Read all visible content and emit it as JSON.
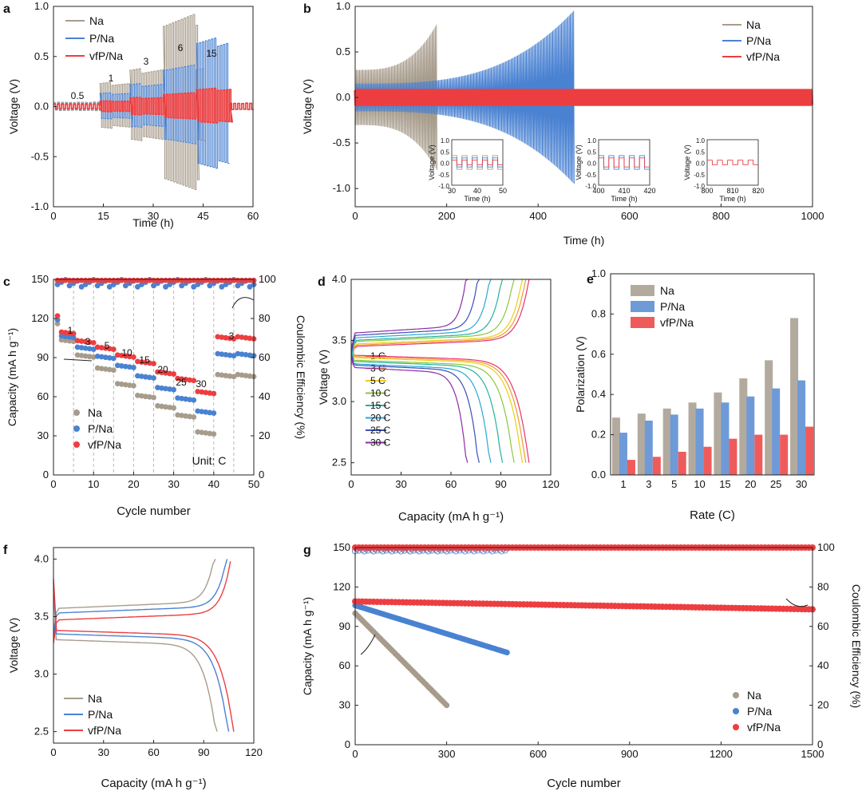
{
  "colors": {
    "na": "#a79c8c",
    "p": "#4a82d2",
    "vfp": "#ec3e40",
    "bar_na": "#b3aa9e",
    "bar_p": "#6e9ad8",
    "bar_vfp": "#ef5b5b",
    "grid": "#b8b8b8"
  },
  "chart_data": [
    {
      "panel": "a",
      "type": "line",
      "xlabel": "Time (h)",
      "ylabel": "Voltage (V)",
      "xlim": [
        0,
        60
      ],
      "ylim": [
        -1.0,
        1.0
      ],
      "xticks": [
        "0",
        "15",
        "30",
        "45",
        "60"
      ],
      "yticks": [
        "-1.0",
        "-0.5",
        "0.0",
        "0.5",
        "1.0"
      ],
      "legend": [
        "Na",
        "P/Na",
        "vfP/Na"
      ],
      "annotations": [
        "0.5",
        "1",
        "3",
        "6",
        "15"
      ],
      "series": [
        {
          "name": "Na",
          "segments": [
            {
              "rate": "0.5",
              "t": [
                0,
                14
              ],
              "amp": 0.04
            },
            {
              "rate": "1",
              "t": [
                14,
                23
              ],
              "amp": 0.21
            },
            {
              "rate": "3",
              "t": [
                23,
                33
              ],
              "amp": 0.33
            },
            {
              "rate": "6",
              "t": [
                33,
                43
              ],
              "amp": 0.8
            },
            {
              "rate": "15",
              "t": [
                43,
                45
              ],
              "amp": 0.35
            }
          ]
        },
        {
          "name": "P/Na",
          "segments": [
            {
              "rate": "0.5",
              "t": [
                0,
                14
              ],
              "amp": 0.03
            },
            {
              "rate": "1",
              "t": [
                14,
                23
              ],
              "amp": 0.12
            },
            {
              "rate": "3",
              "t": [
                23,
                33
              ],
              "amp": 0.2
            },
            {
              "rate": "6",
              "t": [
                33,
                43
              ],
              "amp": 0.36
            },
            {
              "rate": "15",
              "t": [
                43,
                52
              ],
              "amp": 0.6
            }
          ]
        },
        {
          "name": "vfP/Na",
          "segments": [
            {
              "rate": "0.5",
              "t": [
                0,
                14
              ],
              "amp": 0.02
            },
            {
              "rate": "1",
              "t": [
                14,
                23
              ],
              "amp": 0.05
            },
            {
              "rate": "3",
              "t": [
                23,
                33
              ],
              "amp": 0.08
            },
            {
              "rate": "6",
              "t": [
                33,
                43
              ],
              "amp": 0.12
            },
            {
              "rate": "15",
              "t": [
                43,
                53
              ],
              "amp": 0.16
            },
            {
              "rate": "0.5",
              "t": [
                53,
                60
              ],
              "amp": 0.03
            }
          ]
        }
      ]
    },
    {
      "panel": "b",
      "type": "line",
      "xlabel": "Time (h)",
      "ylabel": "Voltage (V)",
      "xlim": [
        0,
        1000
      ],
      "ylim": [
        -1.2,
        1.0
      ],
      "xticks": [
        "0",
        "200",
        "400",
        "600",
        "800",
        "1000"
      ],
      "yticks": [
        "-1.0",
        "-0.5",
        "0.0",
        "0.5",
        "1.0"
      ],
      "legend": [
        "Na",
        "P/Na",
        "vfP/Na"
      ],
      "series": [
        {
          "name": "Na",
          "t_end": 178,
          "amp_start": 0.3,
          "amp_end": 0.8
        },
        {
          "name": "P/Na",
          "t_end": 478,
          "amp_start": 0.15,
          "amp_end": 0.95
        },
        {
          "name": "vfP/Na",
          "t_end": 1000,
          "amp_start": 0.08,
          "amp_end": 0.08
        }
      ],
      "insets": [
        {
          "xlabel": "Time (h)",
          "ylabel": "Voltage (V)",
          "xticks": [
            "30",
            "40",
            "50"
          ],
          "yticks": [
            "1.0",
            "0.5",
            "0.0",
            "-0.5",
            "-1.0"
          ]
        },
        {
          "xlabel": "Time (h)",
          "ylabel": "Voltage (V)",
          "xticks": [
            "400",
            "410",
            "420"
          ],
          "yticks": [
            "1.0",
            "0.5",
            "0.0",
            "-0.5",
            "-1.0"
          ]
        },
        {
          "xlabel": "Time (h)",
          "ylabel": "Voltage (V)",
          "xticks": [
            "800",
            "810",
            "820"
          ],
          "yticks": [
            "1.0",
            "0.5",
            "0.0",
            "-0.5",
            "-1.0"
          ]
        }
      ]
    },
    {
      "panel": "c",
      "type": "scatter",
      "xlabel": "Cycle number",
      "ylabel": "Capacity (mA h g⁻¹)",
      "y2label": "Coulombic Efficiency (%)",
      "xlim": [
        0,
        50
      ],
      "ylim": [
        0,
        150
      ],
      "y2lim": [
        0,
        100
      ],
      "xticks": [
        "0",
        "10",
        "20",
        "30",
        "40",
        "50"
      ],
      "yticks": [
        "0",
        "30",
        "60",
        "90",
        "120",
        "150"
      ],
      "y2ticks": [
        "0",
        "20",
        "40",
        "60",
        "80",
        "100"
      ],
      "legend": [
        "Na",
        "P/Na",
        "vfP/Na"
      ],
      "unit_note": "Unit: C",
      "rates": [
        "1",
        "3",
        "5",
        "10",
        "15",
        "20",
        "25",
        "30",
        "3"
      ],
      "series": [
        {
          "name": "Na",
          "capacity_by_rate": [
            104,
            92,
            82,
            70,
            61,
            53,
            46,
            33,
            77
          ],
          "ce": 98
        },
        {
          "name": "P/Na",
          "capacity_by_rate": [
            107,
            98,
            91,
            84,
            76,
            67,
            59,
            49,
            93
          ],
          "ce": 98
        },
        {
          "name": "vfP/Na",
          "capacity_by_rate": [
            110,
            103,
            98,
            92,
            87,
            79,
            74,
            64,
            106
          ],
          "ce": 99.5
        }
      ]
    },
    {
      "panel": "d",
      "type": "line",
      "xlabel": "Capacity (mA h g⁻¹)",
      "ylabel": "Voltage (V)",
      "xlim": [
        0,
        120
      ],
      "ylim": [
        2.4,
        4.0
      ],
      "xticks": [
        "0",
        "30",
        "60",
        "90",
        "120"
      ],
      "yticks": [
        "2.5",
        "3.0",
        "3.5",
        "4.0"
      ],
      "series": [
        {
          "name": "1 C",
          "capacity": 107,
          "charge_v": 3.45,
          "discharge_v": 3.38,
          "color": "#e8336e"
        },
        {
          "name": "3 C",
          "capacity": 105,
          "charge_v": 3.46,
          "discharge_v": 3.37,
          "color": "#f59a2b"
        },
        {
          "name": "5 C",
          "capacity": 103,
          "charge_v": 3.47,
          "discharge_v": 3.36,
          "color": "#e8cf18"
        },
        {
          "name": "10 C",
          "capacity": 98,
          "charge_v": 3.49,
          "discharge_v": 3.34,
          "color": "#8cc63f"
        },
        {
          "name": "15 C",
          "capacity": 91,
          "charge_v": 3.5,
          "discharge_v": 3.33,
          "color": "#22b39a"
        },
        {
          "name": "20 C",
          "capacity": 84,
          "charge_v": 3.52,
          "discharge_v": 3.31,
          "color": "#2aa7d6"
        },
        {
          "name": "25 C",
          "capacity": 77,
          "charge_v": 3.54,
          "discharge_v": 3.3,
          "color": "#3b4fb8"
        },
        {
          "name": "30 C",
          "capacity": 70,
          "charge_v": 3.56,
          "discharge_v": 3.28,
          "color": "#8a2da3"
        }
      ]
    },
    {
      "panel": "e",
      "type": "bar",
      "xlabel": "Rate (C)",
      "ylabel": "Polarization (V)",
      "ylim": [
        0,
        1.0
      ],
      "yticks": [
        "0.0",
        "0.2",
        "0.4",
        "0.6",
        "0.8",
        "1.0"
      ],
      "categories": [
        "1",
        "3",
        "5",
        "10",
        "15",
        "20",
        "25",
        "30"
      ],
      "legend": [
        "Na",
        "P/Na",
        "vfP/Na"
      ],
      "series": [
        {
          "name": "Na",
          "values": [
            0.285,
            0.305,
            0.33,
            0.36,
            0.41,
            0.48,
            0.57,
            0.78
          ]
        },
        {
          "name": "P/Na",
          "values": [
            0.21,
            0.27,
            0.3,
            0.33,
            0.36,
            0.39,
            0.43,
            0.47
          ]
        },
        {
          "name": "vfP/Na",
          "values": [
            0.075,
            0.09,
            0.115,
            0.14,
            0.18,
            0.2,
            0.2,
            0.24
          ]
        }
      ]
    },
    {
      "panel": "f",
      "type": "line",
      "xlabel": "Capacity (mA h g⁻¹)",
      "ylabel": "Voltage (V)",
      "xlim": [
        0,
        120
      ],
      "ylim": [
        2.4,
        4.1
      ],
      "xticks": [
        "0",
        "30",
        "60",
        "90",
        "120"
      ],
      "yticks": [
        "2.5",
        "3.0",
        "3.5",
        "4.0"
      ],
      "legend": [
        "Na",
        "P/Na",
        "vfP/Na"
      ],
      "series": [
        {
          "name": "Na",
          "charge_cap": 97,
          "discharge_cap": 98,
          "charge_v": 3.57,
          "discharge_v": 3.3
        },
        {
          "name": "P/Na",
          "charge_cap": 104,
          "discharge_cap": 105,
          "charge_v": 3.53,
          "discharge_v": 3.35
        },
        {
          "name": "vfP/Na",
          "charge_cap": 106,
          "discharge_cap": 108,
          "charge_v": 3.47,
          "discharge_v": 3.38
        }
      ]
    },
    {
      "panel": "g",
      "type": "scatter",
      "xlabel": "Cycle number",
      "ylabel": "Capacity (mA h g⁻¹)",
      "y2label": "Coulombic Efficiency (%)",
      "xlim": [
        0,
        1500
      ],
      "ylim": [
        0,
        150
      ],
      "y2lim": [
        0,
        100
      ],
      "xticks": [
        "0",
        "300",
        "600",
        "900",
        "1200",
        "1500"
      ],
      "yticks": [
        "0",
        "30",
        "60",
        "90",
        "120",
        "150"
      ],
      "y2ticks": [
        "0",
        "20",
        "40",
        "60",
        "80",
        "100"
      ],
      "legend": [
        "Na",
        "P/Na",
        "vfP/Na"
      ],
      "series": [
        {
          "name": "Na",
          "cycles": [
            0,
            300
          ],
          "capacity": [
            100,
            30
          ],
          "ce": 99
        },
        {
          "name": "P/Na",
          "cycles": [
            0,
            500
          ],
          "capacity": [
            106,
            70
          ],
          "ce": 99
        },
        {
          "name": "vfP/Na",
          "cycles": [
            0,
            1500
          ],
          "capacity": [
            109,
            103
          ],
          "ce": 100
        }
      ]
    }
  ]
}
